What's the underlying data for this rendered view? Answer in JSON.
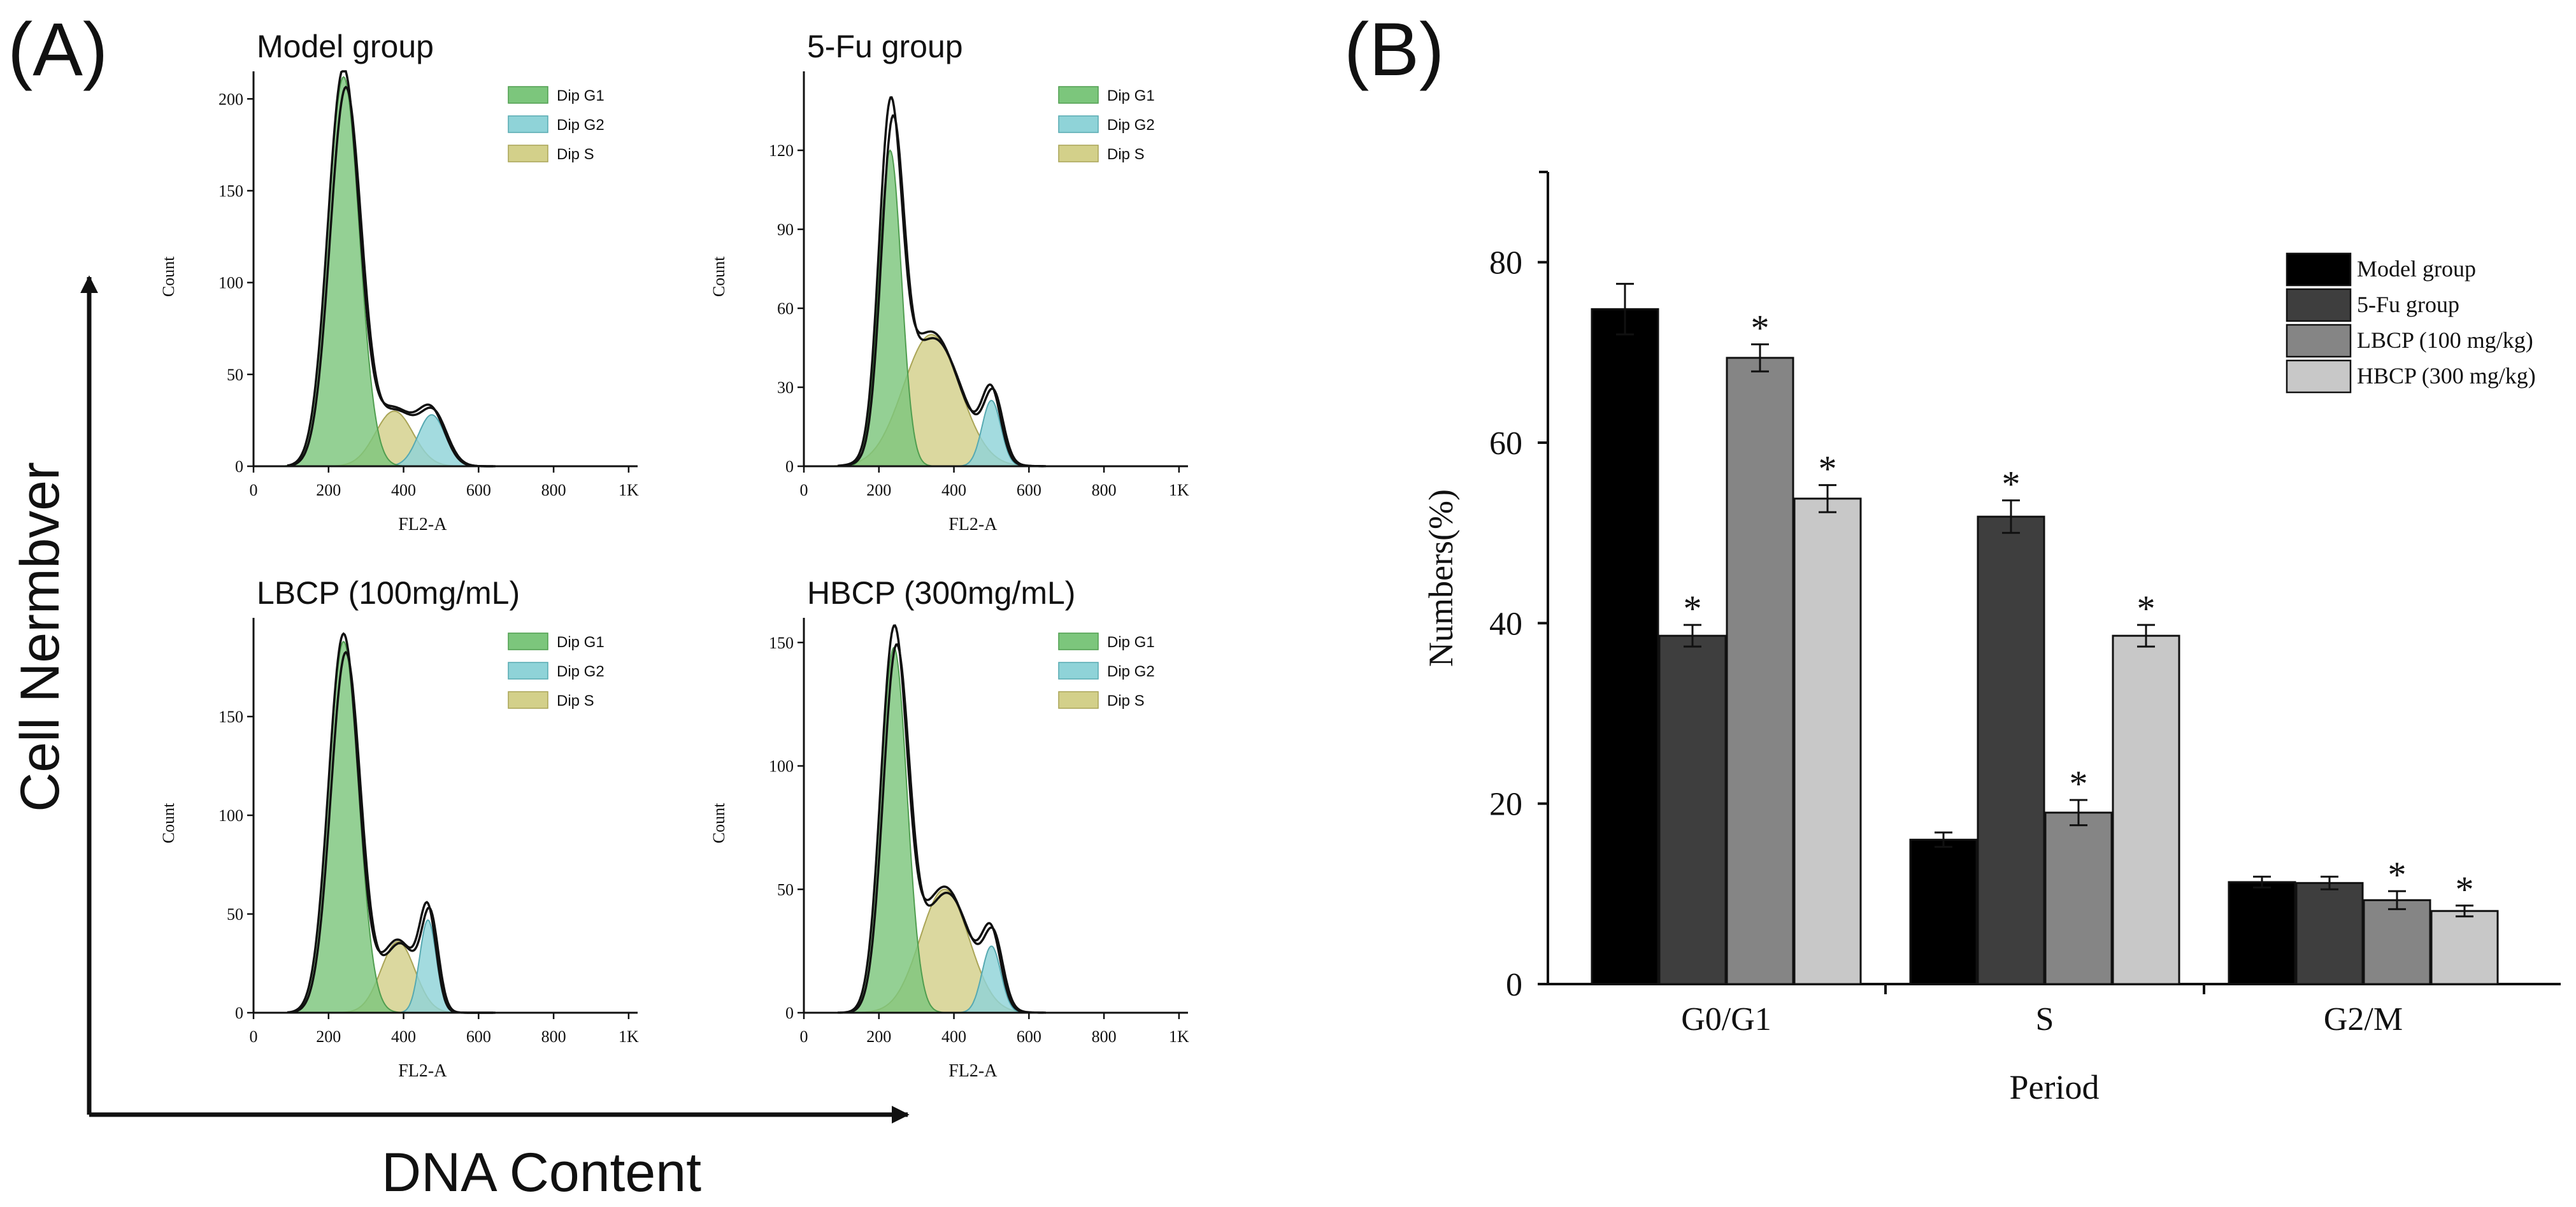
{
  "panel_a": {
    "label": "(A)",
    "y_axis_label": "Cell Nermbver",
    "x_axis_label": "DNA Content"
  },
  "panel_b": {
    "label": "(B)"
  },
  "colors": {
    "g1_fill": "#7cc67c",
    "g1_stroke": "#4f9d4f",
    "g2_fill": "#8fd3d8",
    "g2_stroke": "#56a9b1",
    "s_fill": "#d3d08a",
    "s_stroke": "#a9a456",
    "curve": "#111111",
    "model_bar": "#000000",
    "fu_bar": "#3e3e3e",
    "lbcp_bar": "#858585",
    "hbcp_bar": "#c8c8c8"
  },
  "chart_data": [
    {
      "type": "area",
      "title": "Model group",
      "xlabel": "FL2-A",
      "ylabel": "Count",
      "xlim": [
        0,
        1024
      ],
      "ylim": [
        0,
        215
      ],
      "xticks": [
        "0",
        "200",
        "400",
        "600",
        "800",
        "1K"
      ],
      "yticks": [
        0,
        50,
        100,
        150,
        200
      ],
      "legend": [
        "Dip G1",
        "Dip G2",
        "Dip S"
      ],
      "series": [
        {
          "name": "Dip G1",
          "mu": 240,
          "sigma": 42,
          "amp": 212
        },
        {
          "name": "Dip S",
          "mu": 375,
          "sigma": 50,
          "amp": 30
        },
        {
          "name": "Dip G2",
          "mu": 475,
          "sigma": 36,
          "amp": 28
        }
      ]
    },
    {
      "type": "area",
      "title": "5-Fu group",
      "xlabel": "FL2-A",
      "ylabel": "Count",
      "xlim": [
        0,
        1024
      ],
      "ylim": [
        0,
        150
      ],
      "xticks": [
        "0",
        "200",
        "400",
        "600",
        "800",
        "1K"
      ],
      "yticks": [
        0,
        30,
        60,
        90,
        120
      ],
      "legend": [
        "Dip G1",
        "Dip G2",
        "Dip S"
      ],
      "series": [
        {
          "name": "Dip G1",
          "mu": 230,
          "sigma": 30,
          "amp": 120
        },
        {
          "name": "Dip S",
          "mu": 340,
          "sigma": 75,
          "amp": 50
        },
        {
          "name": "Dip G2",
          "mu": 500,
          "sigma": 25,
          "amp": 25
        }
      ]
    },
    {
      "type": "area",
      "title": "LBCP (100mg/mL)",
      "xlabel": "FL2-A",
      "ylabel": "Count",
      "xlim": [
        0,
        1024
      ],
      "ylim": [
        0,
        200
      ],
      "xticks": [
        "0",
        "200",
        "400",
        "600",
        "800",
        "1K"
      ],
      "yticks": [
        0,
        50,
        100,
        150
      ],
      "legend": [
        "Dip G1",
        "Dip G2",
        "Dip S"
      ],
      "series": [
        {
          "name": "Dip G1",
          "mu": 240,
          "sigma": 40,
          "amp": 188
        },
        {
          "name": "Dip S",
          "mu": 385,
          "sigma": 45,
          "amp": 36
        },
        {
          "name": "Dip G2",
          "mu": 465,
          "sigma": 22,
          "amp": 47
        }
      ]
    },
    {
      "type": "area",
      "title": "HBCP (300mg/mL)",
      "xlabel": "FL2-A",
      "ylabel": "Count",
      "xlim": [
        0,
        1024
      ],
      "ylim": [
        0,
        160
      ],
      "xticks": [
        "0",
        "200",
        "400",
        "600",
        "800",
        "1K"
      ],
      "yticks": [
        0,
        50,
        100,
        150
      ],
      "legend": [
        "Dip G1",
        "Dip G2",
        "Dip S"
      ],
      "series": [
        {
          "name": "Dip G1",
          "mu": 240,
          "sigma": 35,
          "amp": 148
        },
        {
          "name": "Dip S",
          "mu": 375,
          "sigma": 65,
          "amp": 50
        },
        {
          "name": "Dip G2",
          "mu": 500,
          "sigma": 25,
          "amp": 27
        }
      ]
    },
    {
      "type": "bar",
      "title": "",
      "xlabel": "Period",
      "ylabel": "Numbers(%)",
      "ylim": [
        0,
        90
      ],
      "yticks": [
        0,
        20,
        40,
        60,
        80
      ],
      "categories": [
        "G0/G1",
        "S",
        "G2/M"
      ],
      "legend_position": "top-right",
      "series": [
        {
          "name": "Model group",
          "values": [
            74.8,
            16.0,
            11.3
          ],
          "errors": [
            2.8,
            0.8,
            0.6
          ],
          "significant": [
            false,
            false,
            false
          ]
        },
        {
          "name": "5-Fu group",
          "values": [
            38.6,
            51.8,
            11.2
          ],
          "errors": [
            1.2,
            1.8,
            0.7
          ],
          "significant": [
            true,
            true,
            false
          ]
        },
        {
          "name": "LBCP (100 mg/kg)",
          "values": [
            69.4,
            19.0,
            9.3
          ],
          "errors": [
            1.5,
            1.4,
            1.0
          ],
          "significant": [
            true,
            true,
            true
          ]
        },
        {
          "name": "HBCP (300 mg/kg)",
          "values": [
            53.8,
            38.6,
            8.1
          ],
          "errors": [
            1.5,
            1.2,
            0.6
          ],
          "significant": [
            true,
            true,
            true
          ]
        }
      ],
      "significance_marker": "*"
    }
  ]
}
